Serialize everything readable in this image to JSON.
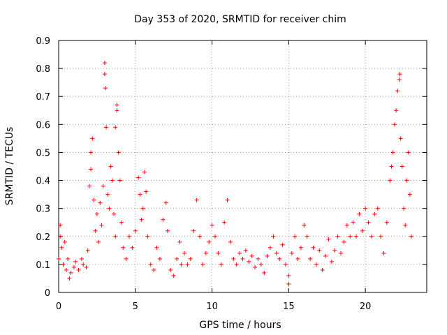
{
  "chart_data": {
    "type": "scatter",
    "title": "Day 353 of 2020, SRMTID for receiver chim",
    "xlabel": "GPS time / hours",
    "ylabel": "SRMTID / TECUs",
    "xlim": [
      0,
      24
    ],
    "ylim": [
      0,
      0.9
    ],
    "xticks": [
      0,
      5,
      10,
      15,
      20
    ],
    "yticks": [
      0,
      0.1,
      0.2,
      0.3,
      0.4,
      0.5,
      0.6,
      0.7,
      0.8,
      0.9
    ],
    "grid": true,
    "marker": "+",
    "color": "#ff0000",
    "series": [
      {
        "name": "SRMTID",
        "points": [
          [
            0.0,
            0.12
          ],
          [
            0.1,
            0.2
          ],
          [
            0.1,
            0.24
          ],
          [
            0.2,
            0.16
          ],
          [
            0.3,
            0.1
          ],
          [
            0.4,
            0.18
          ],
          [
            0.5,
            0.08
          ],
          [
            0.6,
            0.12
          ],
          [
            0.7,
            0.05
          ],
          [
            0.8,
            0.07
          ],
          [
            1.0,
            0.09
          ],
          [
            1.1,
            0.11
          ],
          [
            1.3,
            0.08
          ],
          [
            1.5,
            0.12
          ],
          [
            1.6,
            0.1
          ],
          [
            1.8,
            0.09
          ],
          [
            1.9,
            0.15
          ],
          [
            2.0,
            0.38
          ],
          [
            2.1,
            0.44
          ],
          [
            2.1,
            0.5
          ],
          [
            2.2,
            0.55
          ],
          [
            2.3,
            0.33
          ],
          [
            2.4,
            0.22
          ],
          [
            2.5,
            0.28
          ],
          [
            2.6,
            0.18
          ],
          [
            2.7,
            0.32
          ],
          [
            2.8,
            0.24
          ],
          [
            2.9,
            0.38
          ],
          [
            3.0,
            0.82
          ],
          [
            3.0,
            0.78
          ],
          [
            3.05,
            0.73
          ],
          [
            3.1,
            0.59
          ],
          [
            3.2,
            0.35
          ],
          [
            3.3,
            0.3
          ],
          [
            3.4,
            0.45
          ],
          [
            3.5,
            0.4
          ],
          [
            3.6,
            0.28
          ],
          [
            3.7,
            0.2
          ],
          [
            3.7,
            0.59
          ],
          [
            3.8,
            0.67
          ],
          [
            3.8,
            0.65
          ],
          [
            3.9,
            0.5
          ],
          [
            4.0,
            0.4
          ],
          [
            4.1,
            0.25
          ],
          [
            4.2,
            0.16
          ],
          [
            4.4,
            0.12
          ],
          [
            4.6,
            0.2
          ],
          [
            4.8,
            0.16
          ],
          [
            5.0,
            0.22
          ],
          [
            5.2,
            0.41
          ],
          [
            5.3,
            0.35
          ],
          [
            5.4,
            0.26
          ],
          [
            5.5,
            0.3
          ],
          [
            5.6,
            0.43
          ],
          [
            5.7,
            0.36
          ],
          [
            5.8,
            0.2
          ],
          [
            6.0,
            0.1
          ],
          [
            6.2,
            0.08
          ],
          [
            6.4,
            0.16
          ],
          [
            6.6,
            0.12
          ],
          [
            6.8,
            0.26
          ],
          [
            7.0,
            0.32
          ],
          [
            7.1,
            0.22
          ],
          [
            7.3,
            0.08
          ],
          [
            7.5,
            0.06
          ],
          [
            7.7,
            0.12
          ],
          [
            7.9,
            0.18
          ],
          [
            8.0,
            0.1
          ],
          [
            8.2,
            0.14
          ],
          [
            8.4,
            0.1
          ],
          [
            8.6,
            0.12
          ],
          [
            8.8,
            0.22
          ],
          [
            9.0,
            0.33
          ],
          [
            9.2,
            0.2
          ],
          [
            9.4,
            0.1
          ],
          [
            9.6,
            0.14
          ],
          [
            9.8,
            0.18
          ],
          [
            10.0,
            0.24
          ],
          [
            10.2,
            0.2
          ],
          [
            10.4,
            0.14
          ],
          [
            10.6,
            0.1
          ],
          [
            10.8,
            0.25
          ],
          [
            11.0,
            0.33
          ],
          [
            11.2,
            0.18
          ],
          [
            11.4,
            0.12
          ],
          [
            11.6,
            0.1
          ],
          [
            11.8,
            0.14
          ],
          [
            12.0,
            0.12
          ],
          [
            12.2,
            0.15
          ],
          [
            12.4,
            0.11
          ],
          [
            12.6,
            0.13
          ],
          [
            12.8,
            0.09
          ],
          [
            13.0,
            0.12
          ],
          [
            13.2,
            0.1
          ],
          [
            13.4,
            0.07
          ],
          [
            13.6,
            0.13
          ],
          [
            13.8,
            0.16
          ],
          [
            14.0,
            0.2
          ],
          [
            14.2,
            0.14
          ],
          [
            14.4,
            0.12
          ],
          [
            14.6,
            0.17
          ],
          [
            14.8,
            0.1
          ],
          [
            15.0,
            0.06
          ],
          [
            15.0,
            0.03
          ],
          [
            15.2,
            0.14
          ],
          [
            15.4,
            0.2
          ],
          [
            15.6,
            0.12
          ],
          [
            15.8,
            0.16
          ],
          [
            16.0,
            0.24
          ],
          [
            16.2,
            0.2
          ],
          [
            16.4,
            0.12
          ],
          [
            16.6,
            0.16
          ],
          [
            16.8,
            0.1
          ],
          [
            17.0,
            0.15
          ],
          [
            17.2,
            0.08
          ],
          [
            17.4,
            0.13
          ],
          [
            17.6,
            0.19
          ],
          [
            17.8,
            0.11
          ],
          [
            18.0,
            0.15
          ],
          [
            18.2,
            0.2
          ],
          [
            18.4,
            0.14
          ],
          [
            18.6,
            0.18
          ],
          [
            18.8,
            0.24
          ],
          [
            19.0,
            0.2
          ],
          [
            19.2,
            0.25
          ],
          [
            19.4,
            0.2
          ],
          [
            19.6,
            0.28
          ],
          [
            19.8,
            0.22
          ],
          [
            20.0,
            0.3
          ],
          [
            20.2,
            0.25
          ],
          [
            20.4,
            0.2
          ],
          [
            20.6,
            0.28
          ],
          [
            20.8,
            0.3
          ],
          [
            21.0,
            0.2
          ],
          [
            21.2,
            0.14
          ],
          [
            21.4,
            0.25
          ],
          [
            21.6,
            0.4
          ],
          [
            21.7,
            0.45
          ],
          [
            21.8,
            0.5
          ],
          [
            21.9,
            0.6
          ],
          [
            22.0,
            0.65
          ],
          [
            22.1,
            0.72
          ],
          [
            22.2,
            0.76
          ],
          [
            22.25,
            0.78
          ],
          [
            22.3,
            0.55
          ],
          [
            22.4,
            0.45
          ],
          [
            22.5,
            0.3
          ],
          [
            22.6,
            0.24
          ],
          [
            22.7,
            0.4
          ],
          [
            22.8,
            0.5
          ],
          [
            22.9,
            0.35
          ],
          [
            23.0,
            0.2
          ]
        ]
      }
    ]
  }
}
